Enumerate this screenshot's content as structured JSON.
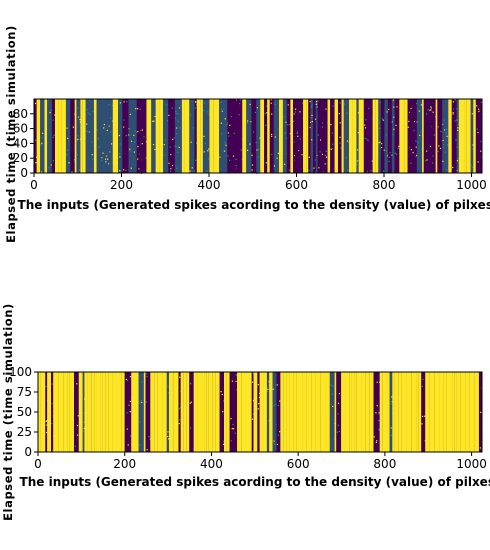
{
  "chart_data": [
    {
      "type": "heatmap",
      "title": "",
      "xlabel": "The inputs (Generated spikes acording to the density (value) of pilxes)",
      "ylabel": "Elapsed time (time simulation)",
      "xlim": [
        0,
        1024
      ],
      "ylim": [
        0,
        100
      ],
      "xticks": [
        "0",
        "200",
        "400",
        "600",
        "800",
        "1000"
      ],
      "yticks": [
        "0",
        "20",
        "40",
        "60",
        "80"
      ],
      "colormap": [
        "#440154",
        "#21918c",
        "#fde725"
      ],
      "yellow_column_density": 0.35,
      "grid": false
    },
    {
      "type": "heatmap",
      "title": "",
      "xlabel": "The inputs (Generated spikes acording to the density (value) of pilxes)",
      "ylabel": "Elapsed time (time simulation)",
      "xlim": [
        0,
        1024
      ],
      "ylim": [
        0,
        100
      ],
      "xticks": [
        "0",
        "200",
        "400",
        "600",
        "800",
        "1000"
      ],
      "yticks": [
        "0",
        "25",
        "50",
        "75",
        "100"
      ],
      "colormap": [
        "#440154",
        "#21918c",
        "#fde725"
      ],
      "yellow_column_density": 0.72,
      "grid": false
    }
  ]
}
